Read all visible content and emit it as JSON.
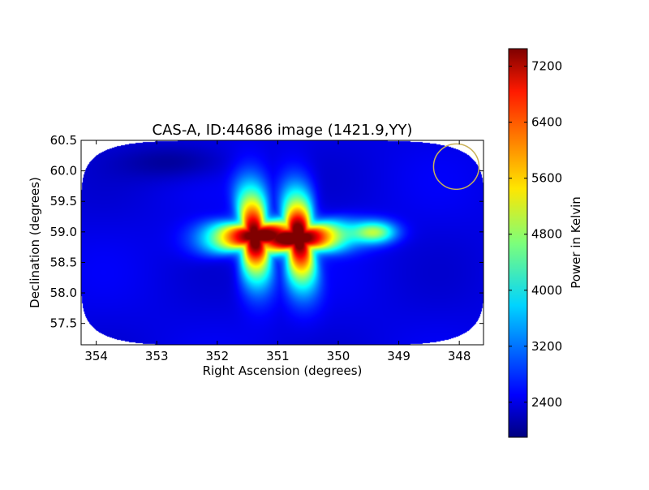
{
  "chart_data": {
    "type": "heatmap",
    "title": "CAS-A, ID:44686 image (1421.9,YY)",
    "xlabel": "Right Ascension (degrees)",
    "ylabel": "Declination (degrees)",
    "xlim": [
      354.25,
      347.6
    ],
    "ylim": [
      57.15,
      60.5
    ],
    "x_ticks": [
      354,
      353,
      352,
      351,
      350,
      349,
      348
    ],
    "y_ticks": [
      57.5,
      58.0,
      58.5,
      59.0,
      59.5,
      60.0,
      60.5
    ],
    "colorbar": {
      "label": "Power in Kelvin",
      "range": [
        1900,
        7450
      ],
      "ticks": [
        2400,
        3200,
        4000,
        4800,
        5600,
        6400,
        7200
      ],
      "colormap": "jet"
    },
    "background_level": 2450,
    "sources": [
      {
        "ra": 351.4,
        "dec": 58.95,
        "peak": 7300
      },
      {
        "ra": 350.65,
        "dec": 58.9,
        "peak": 7450
      }
    ],
    "beam_circle": {
      "ra": 348.05,
      "dec": 60.07,
      "color": "#c9b25a"
    }
  }
}
